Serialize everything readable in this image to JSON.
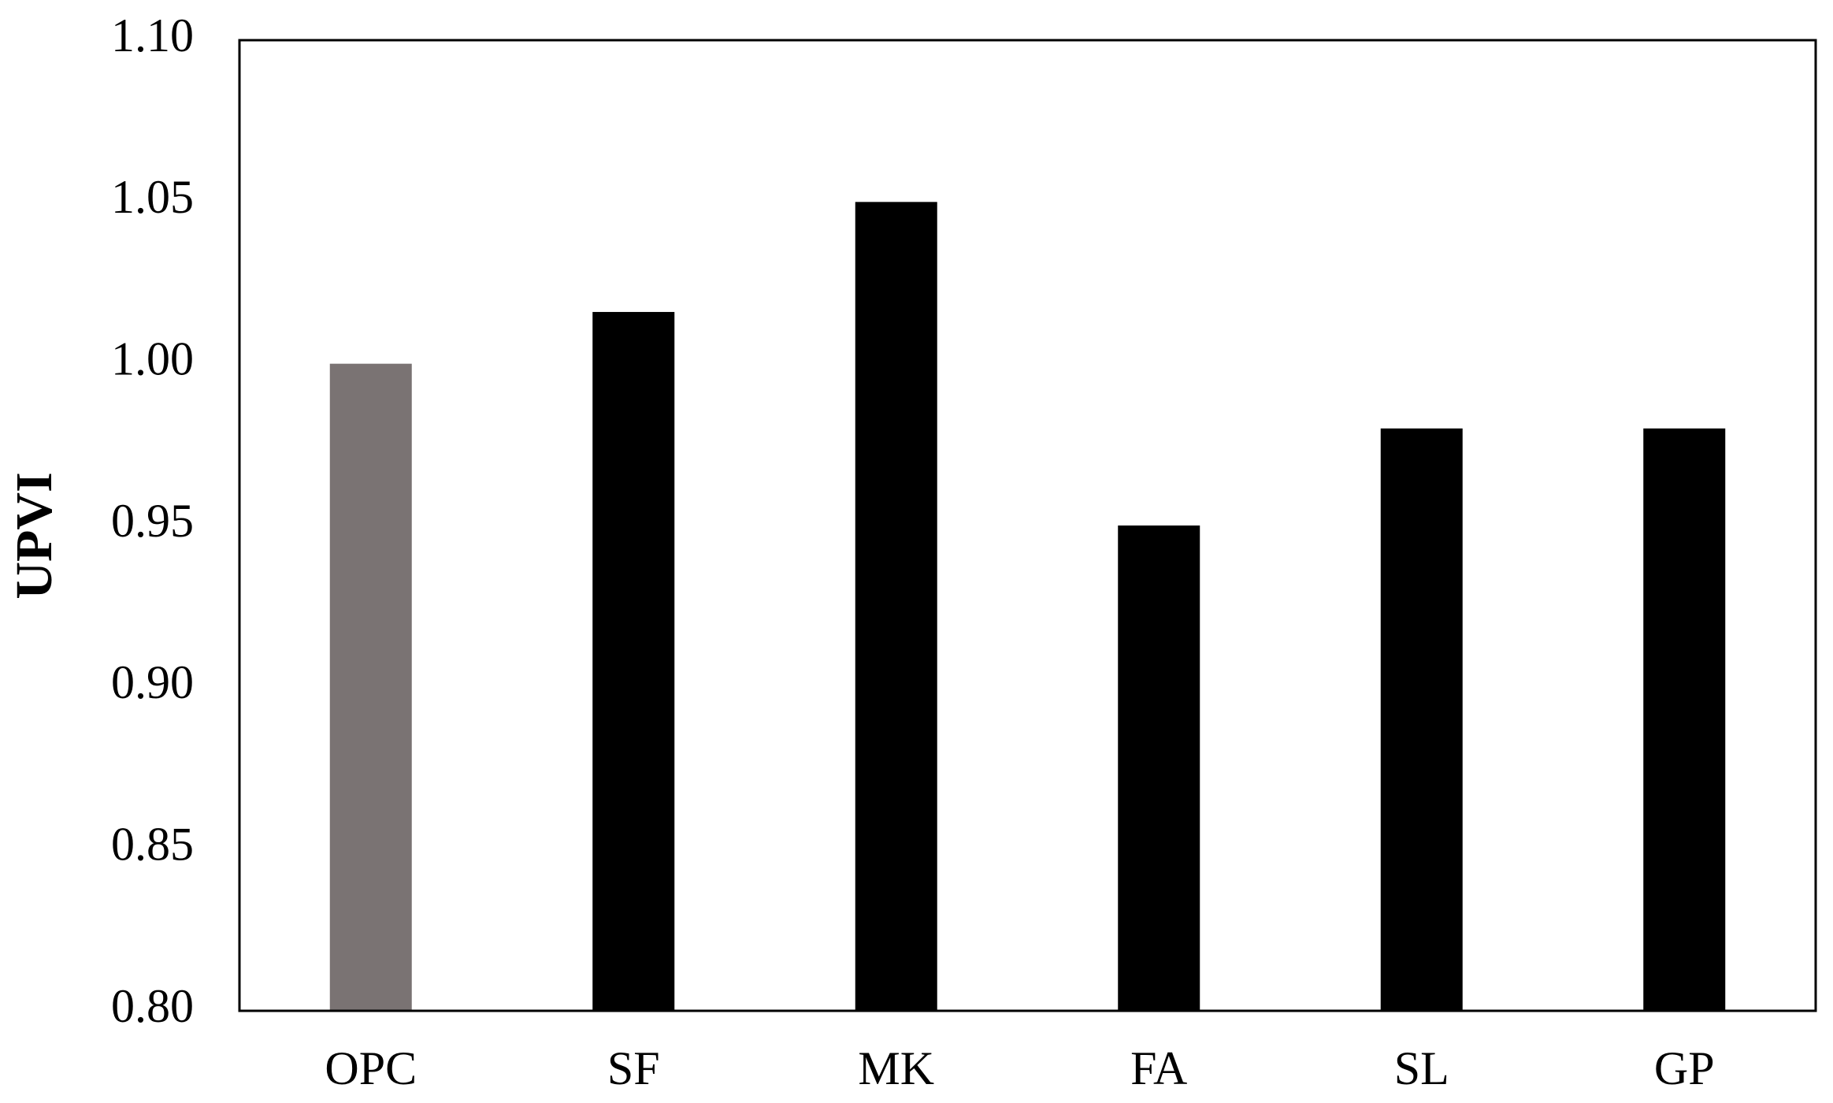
{
  "chart_data": {
    "type": "bar",
    "y_label": "UPVI",
    "categories": [
      "OPC",
      "SF",
      "MK",
      "FA",
      "SL",
      "GP"
    ],
    "values": [
      1.0,
      1.016,
      1.05,
      0.95,
      0.98,
      0.98
    ],
    "colors": [
      "#7a7373",
      "#000000",
      "#000000",
      "#000000",
      "#000000",
      "#000000"
    ],
    "ylim": [
      0.8,
      1.1
    ],
    "yticks": [
      {
        "value": 0.8,
        "label": "0.80"
      },
      {
        "value": 0.85,
        "label": "0.85"
      },
      {
        "value": 0.9,
        "label": "0.90"
      },
      {
        "value": 0.95,
        "label": "0.95"
      },
      {
        "value": 1.0,
        "label": "1.00"
      },
      {
        "value": 1.05,
        "label": "1.05"
      },
      {
        "value": 1.1,
        "label": "1.10"
      }
    ],
    "grid": false
  }
}
